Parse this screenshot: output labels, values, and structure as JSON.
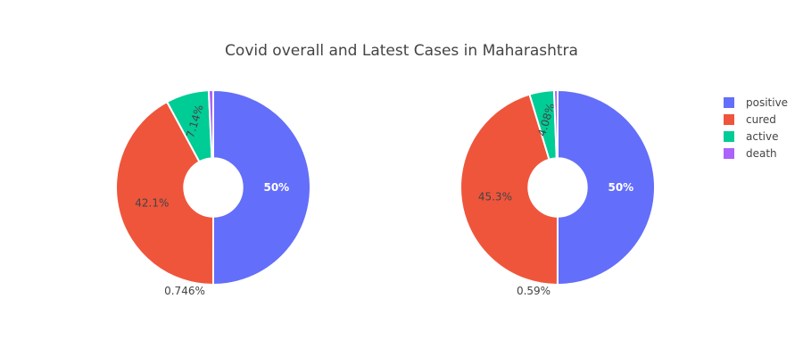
{
  "chart_data": {
    "type": "pie",
    "title": "Covid overall and Latest Cases in Maharashtra",
    "legend_position": "top-right",
    "categories": [
      "positive",
      "cured",
      "active",
      "death"
    ],
    "colors": [
      "#636efa",
      "#ef553b",
      "#00cc96",
      "#ab63fa"
    ],
    "charts": [
      {
        "hole": 0.3,
        "percent_values": [
          50,
          42.1,
          7.14,
          0.746
        ],
        "labels": [
          "50%",
          "42.1%",
          "7.14%",
          "0.746%"
        ]
      },
      {
        "hole": 0.3,
        "percent_values": [
          50,
          45.3,
          4.08,
          0.59
        ],
        "labels": [
          "50%",
          "45.3%",
          "4.08%",
          "0.59%"
        ]
      }
    ]
  }
}
